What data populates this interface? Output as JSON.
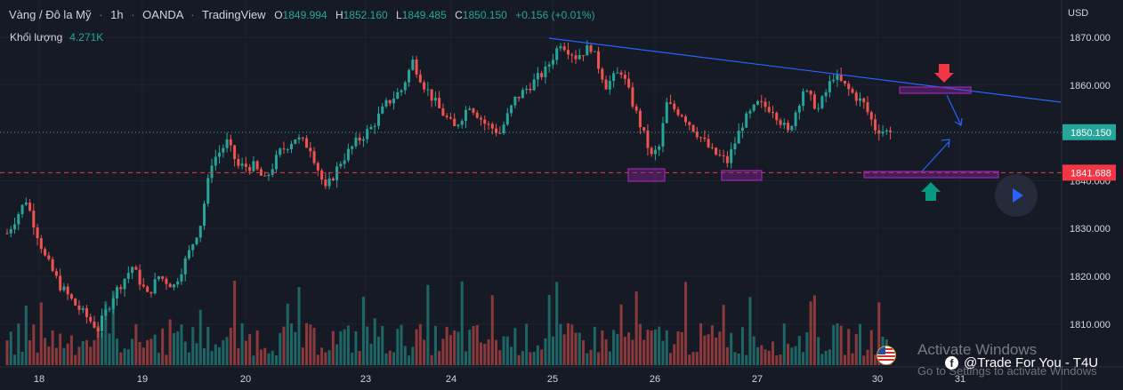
{
  "header": {
    "symbol": "Vàng / Đô la Mỹ",
    "sep1": "·",
    "interval": "1h",
    "sep2": "·",
    "broker": "OANDA",
    "sep3": "·",
    "source": "TradingView",
    "o_label": "O",
    "o_value": "1849.994",
    "h_label": "H",
    "h_value": "1852.160",
    "l_label": "L",
    "l_value": "1849.485",
    "c_label": "C",
    "c_value": "1850.150",
    "change": "+0.156 (+0.01%)"
  },
  "volume": {
    "label": "Khối lượng",
    "value": "4.271K"
  },
  "price_axis": {
    "unit": "USD",
    "ticks": [
      "1870.000",
      "1860.000",
      "1850.000",
      "1840.000",
      "1830.000",
      "1820.000",
      "1810.000"
    ],
    "current_price_label": "1850.150",
    "support_price_label": "1841.688"
  },
  "time_axis": {
    "ticks": [
      "18",
      "19",
      "20",
      "23",
      "24",
      "25",
      "26",
      "27",
      "30",
      "31"
    ]
  },
  "watermark": {
    "line1": "Activate Windows",
    "line2": "Go to Settings to activate Windows"
  },
  "credit": {
    "text": "@Trade For You - T4U",
    "icon": "facebook-icon"
  },
  "colors": {
    "bull": "#26a69a",
    "bear": "#ef5350",
    "support": "#f23645",
    "trendline": "#2962ff",
    "zone": "#9c27b0"
  },
  "chart_data": {
    "type": "candlestick",
    "title": "Vàng / Đô la Mỹ",
    "ylabel": "USD",
    "ylim": [
      1803,
      1875
    ],
    "x_ticks": [
      "18",
      "19",
      "20",
      "23",
      "24",
      "25",
      "26",
      "27",
      "30",
      "31"
    ],
    "last_close": 1850.15,
    "support_level": 1841.688,
    "path": [
      [
        0,
        1829
      ],
      [
        5,
        1836
      ],
      [
        10,
        1824
      ],
      [
        14,
        1818
      ],
      [
        18,
        1814
      ],
      [
        24,
        1809
      ],
      [
        28,
        1816
      ],
      [
        33,
        1822
      ],
      [
        37,
        1816
      ],
      [
        40,
        1820
      ],
      [
        44,
        1818
      ],
      [
        48,
        1825
      ],
      [
        51,
        1831
      ],
      [
        54,
        1844
      ],
      [
        58,
        1848
      ],
      [
        61,
        1843
      ],
      [
        65,
        1843
      ],
      [
        68,
        1840
      ],
      [
        72,
        1846
      ],
      [
        76,
        1849
      ],
      [
        80,
        1847
      ],
      [
        84,
        1838
      ],
      [
        88,
        1844
      ],
      [
        92,
        1848
      ],
      [
        96,
        1851
      ],
      [
        100,
        1856
      ],
      [
        104,
        1859
      ],
      [
        107,
        1865
      ],
      [
        110,
        1860
      ],
      [
        114,
        1855
      ],
      [
        118,
        1851
      ],
      [
        122,
        1856
      ],
      [
        126,
        1852
      ],
      [
        130,
        1850
      ],
      [
        134,
        1857
      ],
      [
        138,
        1860
      ],
      [
        142,
        1863
      ],
      [
        146,
        1869
      ],
      [
        150,
        1866
      ],
      [
        154,
        1868
      ],
      [
        158,
        1860
      ],
      [
        162,
        1863
      ],
      [
        166,
        1854
      ],
      [
        170,
        1845
      ],
      [
        172,
        1847
      ],
      [
        174,
        1856
      ],
      [
        178,
        1854
      ],
      [
        182,
        1850
      ],
      [
        186,
        1846
      ],
      [
        190,
        1844
      ],
      [
        194,
        1852
      ],
      [
        198,
        1856
      ],
      [
        202,
        1855
      ],
      [
        206,
        1850
      ],
      [
        210,
        1859
      ],
      [
        214,
        1855
      ],
      [
        218,
        1862
      ],
      [
        222,
        1859
      ],
      [
        226,
        1856
      ],
      [
        229,
        1851
      ],
      [
        233,
        1850
      ]
    ],
    "volume_max": 18
  }
}
